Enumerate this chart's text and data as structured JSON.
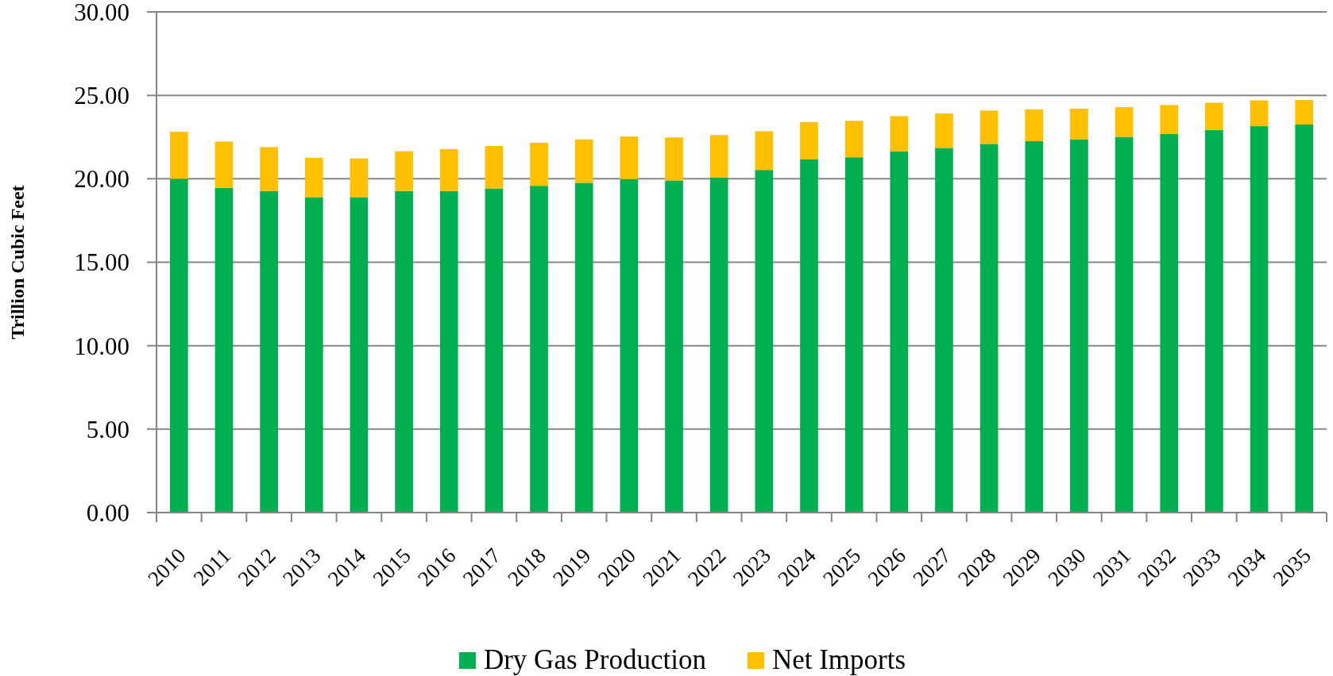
{
  "chart_data": {
    "type": "bar",
    "stacked": true,
    "ylabel": "Trillion Cubic Feet",
    "categories": [
      "2010",
      "2011",
      "2012",
      "2013",
      "2014",
      "2015",
      "2016",
      "2017",
      "2018",
      "2019",
      "2020",
      "2021",
      "2022",
      "2023",
      "2024",
      "2025",
      "2026",
      "2027",
      "2028",
      "2029",
      "2030",
      "2031",
      "2032",
      "2033",
      "2034",
      "2035"
    ],
    "series": [
      {
        "name": "Dry Gas Production",
        "color": "#00b050",
        "values": [
          20.0,
          19.46,
          19.27,
          18.9,
          18.9,
          19.27,
          19.27,
          19.42,
          19.58,
          19.76,
          19.98,
          19.9,
          20.08,
          20.53,
          21.16,
          21.29,
          21.65,
          21.85,
          22.09,
          22.25,
          22.37,
          22.51,
          22.68,
          22.93,
          23.15,
          23.25
        ]
      },
      {
        "name": "Net Imports",
        "color": "#ffc000",
        "values": [
          2.82,
          2.77,
          2.63,
          2.36,
          2.32,
          2.38,
          2.51,
          2.55,
          2.58,
          2.6,
          2.55,
          2.58,
          2.54,
          2.32,
          2.24,
          2.18,
          2.1,
          2.06,
          2.0,
          1.91,
          1.83,
          1.78,
          1.74,
          1.63,
          1.55,
          1.47
        ]
      }
    ],
    "ylim": [
      0,
      30
    ],
    "yticks": [
      {
        "value": 0,
        "label": "0.00"
      },
      {
        "value": 5,
        "label": "5.00"
      },
      {
        "value": 10,
        "label": "10.00"
      },
      {
        "value": 15,
        "label": "15.00"
      },
      {
        "value": 20,
        "label": "20.00"
      },
      {
        "value": 25,
        "label": "25.00"
      },
      {
        "value": 30,
        "label": "30.00"
      }
    ],
    "grid": "y",
    "legend": "bottom"
  }
}
